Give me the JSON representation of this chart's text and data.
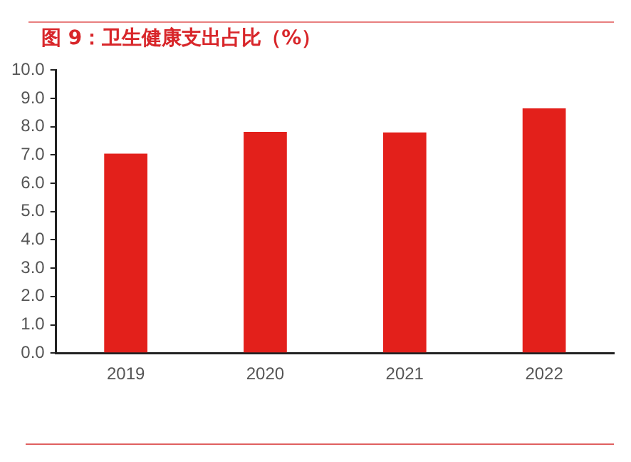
{
  "chart_data": {
    "type": "bar",
    "title": "图 9：卫生健康支出占比（%）",
    "categories": [
      "2019",
      "2020",
      "2021",
      "2022"
    ],
    "values": [
      7.05,
      7.82,
      7.8,
      8.65
    ],
    "color": "#e3201b",
    "ylim": [
      0,
      10
    ],
    "yticks": [
      {
        "value": 0,
        "label": "0.0"
      },
      {
        "value": 1,
        "label": "1.0"
      },
      {
        "value": 2,
        "label": "2.0"
      },
      {
        "value": 3,
        "label": "3.0"
      },
      {
        "value": 4,
        "label": "4.0"
      },
      {
        "value": 5,
        "label": "5.0"
      },
      {
        "value": 6,
        "label": "6.0"
      },
      {
        "value": 7,
        "label": "7.0"
      },
      {
        "value": 8,
        "label": "8.0"
      },
      {
        "value": 9,
        "label": "9.0"
      },
      {
        "value": 10,
        "label": "10.0"
      }
    ],
    "grid": false,
    "legend": false
  }
}
